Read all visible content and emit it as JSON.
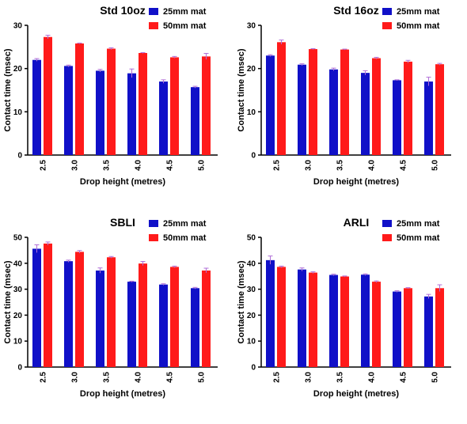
{
  "figure": {
    "colors": {
      "series_25": "#1010c8",
      "series_50": "#ff1a1a",
      "error_bar": "#b06fd8",
      "axis": "#000000"
    }
  },
  "chart_data": [
    {
      "type": "bar",
      "title": "Std 10oz",
      "xlabel": "Drop height (metres)",
      "ylabel": "Contact time (msec)",
      "ylim": [
        0,
        30
      ],
      "yticks": [
        "0",
        "10",
        "20",
        "30"
      ],
      "categories": [
        "2.5",
        "3.0",
        "3.5",
        "4.0",
        "4.5",
        "5.0"
      ],
      "legend_position": "top-right",
      "series": [
        {
          "name": "25mm mat",
          "values": [
            22.0,
            20.6,
            19.5,
            18.9,
            17.0,
            15.7
          ],
          "errors": [
            0.3,
            0.2,
            0.3,
            1.0,
            0.4,
            0.2
          ]
        },
        {
          "name": "50mm mat",
          "values": [
            27.3,
            25.8,
            24.6,
            23.6,
            22.6,
            22.8
          ],
          "errors": [
            0.4,
            0.1,
            0.2,
            0.1,
            0.2,
            0.7
          ]
        }
      ]
    },
    {
      "type": "bar",
      "title": "Std 16oz",
      "xlabel": "Drop height (metres)",
      "ylabel": "Contact time (msec)",
      "ylim": [
        0,
        30
      ],
      "yticks": [
        "0",
        "10",
        "20",
        "30"
      ],
      "categories": [
        "2.5",
        "3.0",
        "3.5",
        "4.0",
        "4.5",
        "5.0"
      ],
      "legend_position": "top-right",
      "series": [
        {
          "name": "25mm mat",
          "values": [
            23.0,
            20.9,
            19.8,
            19.0,
            17.3,
            17.0
          ],
          "errors": [
            0.2,
            0.2,
            0.3,
            0.5,
            0.1,
            1.0
          ]
        },
        {
          "name": "50mm mat",
          "values": [
            26.1,
            24.5,
            24.4,
            22.4,
            21.6,
            21.0
          ],
          "errors": [
            0.5,
            0.1,
            0.1,
            0.2,
            0.3,
            0.2
          ]
        }
      ]
    },
    {
      "type": "bar",
      "title": "SBLI",
      "xlabel": "Drop height (metres)",
      "ylabel": "Contact time (msec)",
      "ylim": [
        0,
        50
      ],
      "yticks": [
        "0",
        "10",
        "20",
        "30",
        "40",
        "50"
      ],
      "categories": [
        "2.5",
        "3.0",
        "3.5",
        "4.0",
        "4.5",
        "5.0"
      ],
      "legend_position": "top-right",
      "series": [
        {
          "name": "25mm mat",
          "values": [
            45.6,
            40.8,
            37.2,
            32.9,
            31.8,
            30.4
          ],
          "errors": [
            1.5,
            0.4,
            1.0,
            0.2,
            0.3,
            0.3
          ]
        },
        {
          "name": "50mm mat",
          "values": [
            47.6,
            44.4,
            42.3,
            39.9,
            38.6,
            37.2
          ],
          "errors": [
            0.6,
            0.5,
            0.3,
            0.8,
            0.3,
            0.9
          ]
        }
      ]
    },
    {
      "type": "bar",
      "title": "ARLI",
      "xlabel": "Drop height (metres)",
      "ylabel": "Contact time (msec)",
      "ylim": [
        0,
        50
      ],
      "yticks": [
        "0",
        "10",
        "20",
        "30",
        "40",
        "50"
      ],
      "categories": [
        "2.5",
        "3.0",
        "3.5",
        "4.0",
        "4.5",
        "5.0"
      ],
      "legend_position": "top-right",
      "series": [
        {
          "name": "25mm mat",
          "values": [
            41.2,
            37.6,
            35.5,
            35.6,
            29.1,
            27.2
          ],
          "errors": [
            1.6,
            0.6,
            0.3,
            0.3,
            0.3,
            0.8
          ]
        },
        {
          "name": "50mm mat",
          "values": [
            38.6,
            36.4,
            34.9,
            32.9,
            30.4,
            30.4
          ],
          "errors": [
            0.3,
            0.3,
            0.2,
            0.3,
            0.2,
            1.3
          ]
        }
      ]
    }
  ]
}
